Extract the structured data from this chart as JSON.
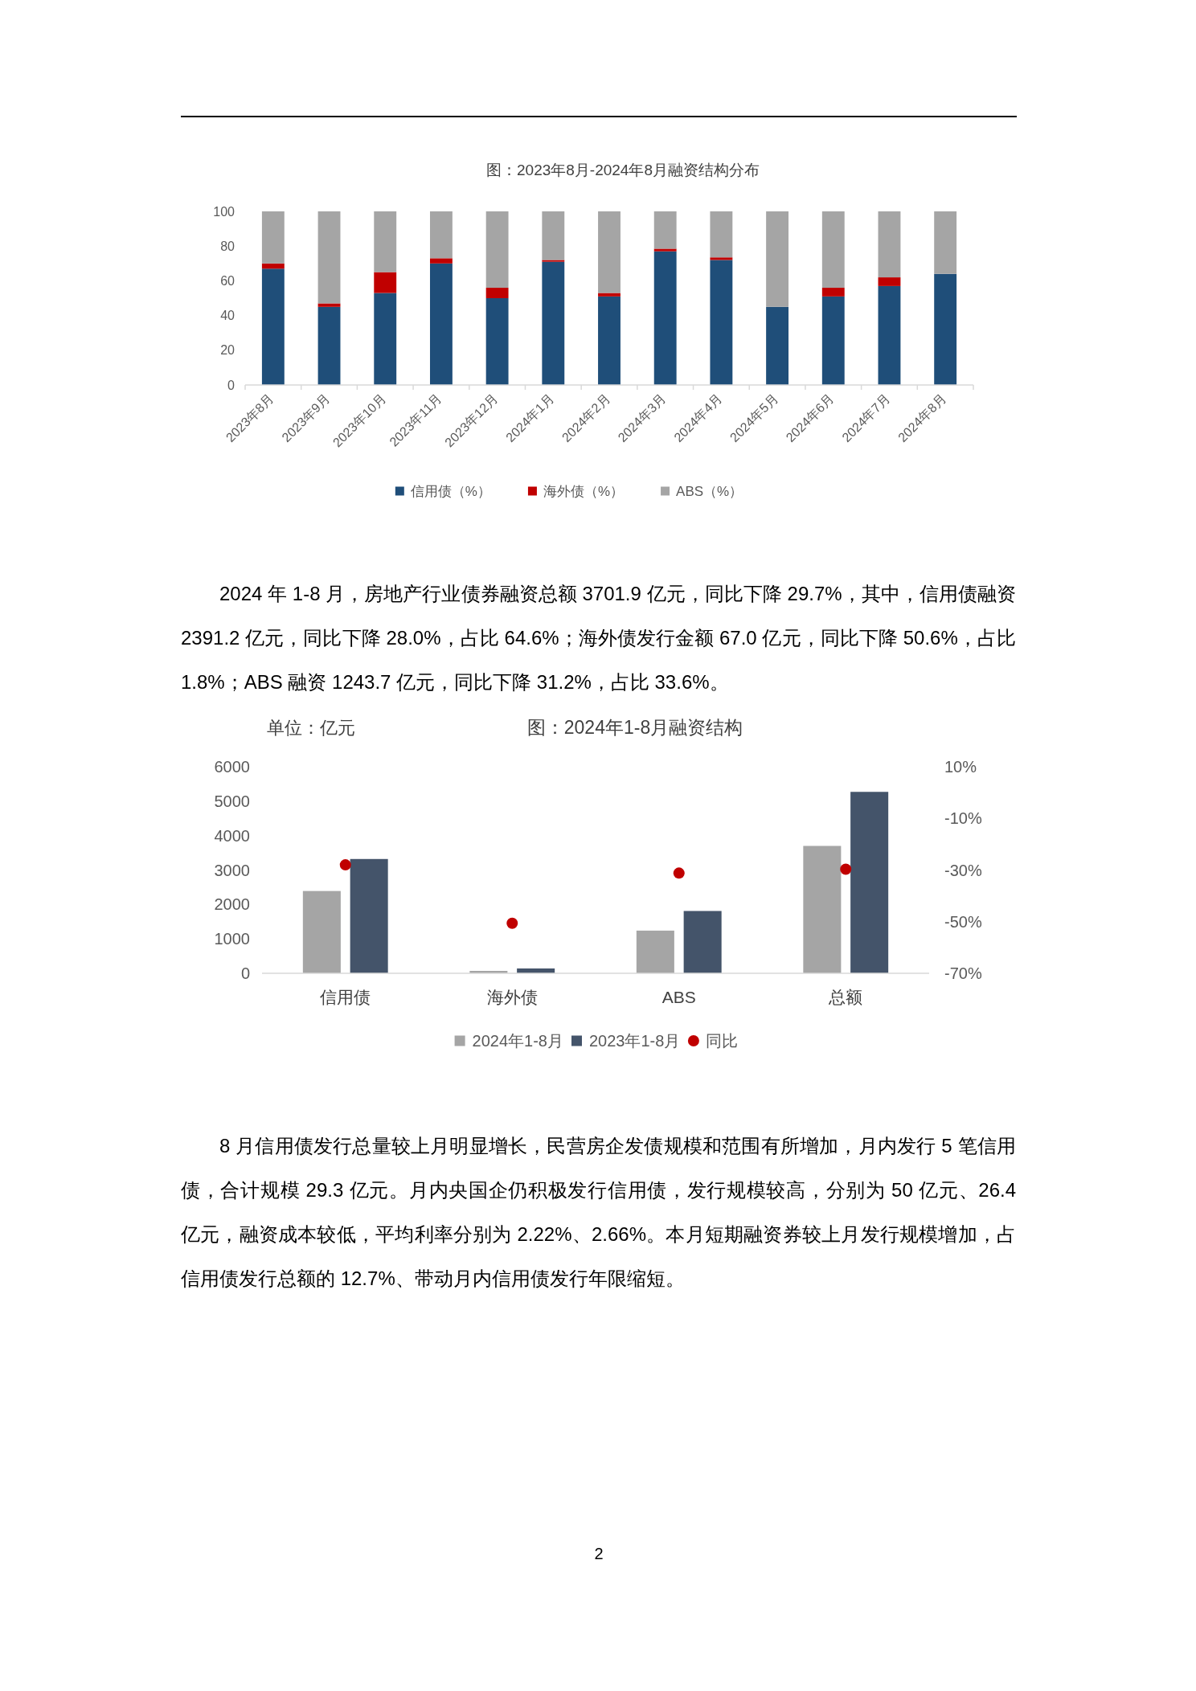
{
  "chart_data": [
    {
      "type": "bar",
      "title": "图：2023年8月-2024年8月融资结构分布",
      "categories": [
        "2023年8月",
        "2023年9月",
        "2023年10月",
        "2023年11月",
        "2023年12月",
        "2024年1月",
        "2024年2月",
        "2024年3月",
        "2024年4月",
        "2024年5月",
        "2024年6月",
        "2024年7月",
        "2024年8月"
      ],
      "stacked": true,
      "series": [
        {
          "name": "信用债（%）",
          "color": "#1f4e79",
          "values": [
            67,
            45,
            53,
            70,
            50,
            71,
            51,
            77,
            72,
            45,
            51,
            57,
            64
          ]
        },
        {
          "name": "海外债（%）",
          "color": "#c00000",
          "values": [
            3,
            2,
            12,
            3,
            6,
            1,
            2,
            1.5,
            1.5,
            0,
            5,
            5,
            0
          ]
        },
        {
          "name": "ABS（%）",
          "color": "#a5a5a5",
          "values": [
            30,
            53,
            35,
            27,
            44,
            28,
            47,
            21.5,
            26.5,
            55,
            44,
            38,
            36
          ]
        }
      ],
      "ylim": [
        0,
        100
      ],
      "yticks": [
        0,
        20,
        40,
        60,
        80,
        100
      ],
      "legend": "bottom",
      "annotations": [
        "2024 年 1-8 月，房地产行业债券融资总额 3701.9 亿元，同比下降 29.7%，其中，信用债融资 2391.2 亿元，同比下降 28.0%，占比 64.6%；海外债发行金额 67.0 亿元，同比下降 50.6%，占比 1.8%；ABS 融资 1243.7 亿元，同比下降 31.2%，占比 33.6%。"
      ]
    },
    {
      "type": "bar",
      "title": "图：2024年1-8月融资结构",
      "ylabel": "单位：亿元",
      "categories": [
        "信用债",
        "海外债",
        "ABS",
        "总额"
      ],
      "series": [
        {
          "name": "2024年1-8月",
          "color": "#a5a5a5",
          "values": [
            2390,
            70,
            1240,
            3700
          ]
        },
        {
          "name": "2023年1-8月",
          "color": "#44546a",
          "values": [
            3320,
            140,
            1810,
            5270
          ]
        },
        {
          "type": "scatter",
          "name": "同比",
          "color": "#c00000",
          "axis": "y2",
          "x": [
            "信用债",
            "海外债",
            "ABS",
            "总额"
          ],
          "values": [
            -28.0,
            -50.6,
            -31.2,
            -29.7
          ]
        }
      ],
      "ylim": [
        0,
        6000
      ],
      "yticks": [
        0,
        1000,
        2000,
        3000,
        4000,
        5000,
        6000
      ],
      "y2lim": [
        -70,
        10
      ],
      "y2ticks": [
        {
          "value": -70,
          "label": "-70%"
        },
        {
          "value": -50,
          "label": "-50%"
        },
        {
          "value": -30,
          "label": "-30%"
        },
        {
          "value": -10,
          "label": "-10%"
        },
        {
          "value": 10,
          "label": "10%"
        }
      ],
      "legend": "bottom",
      "marker": "circle",
      "annotations": [
        "8 月信用债发行总量较上月明显增长，民营房企发债规模和范围有所增加，月内发行 5 笔信用债，合计规模 29.3 亿元。月内央国企仍积极发行信用债，发行规模较高，分别为 50 亿元、26.4 亿元，融资成本较低，平均利率分别为 2.22%、2.66%。本月短期融资券较上月发行规模增加，占信用债发行总额的 12.7%、带动月内信用债发行年限缩短。",
        "2"
      ]
    }
  ]
}
